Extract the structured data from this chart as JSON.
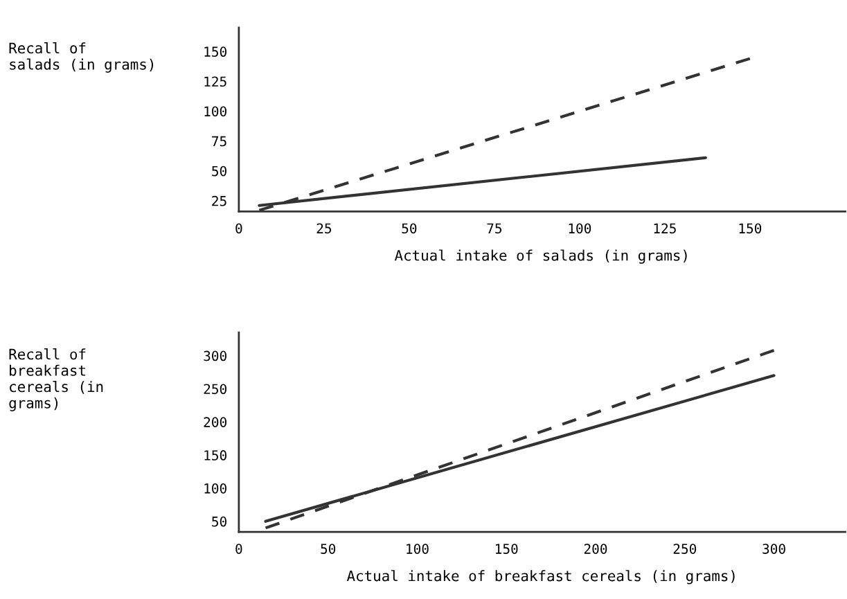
{
  "chart_data": [
    {
      "type": "line",
      "ylabel": "Recall of\nsalads (in grams)",
      "xlabel": "Actual intake of salads (in grams)",
      "xlim": [
        0,
        178
      ],
      "xticks": [
        0,
        25,
        50,
        75,
        100,
        125,
        150
      ],
      "ylim": [
        16,
        170
      ],
      "yticks": [
        25,
        50,
        75,
        100,
        125,
        150
      ],
      "grid": false,
      "legend": false,
      "series": [
        {
          "color": "#333333",
          "line_style": "dashed",
          "x": [
            6,
            150
          ],
          "values": [
            17,
            144
          ]
        },
        {
          "color": "#333333",
          "line_style": "solid",
          "x": [
            6,
            137
          ],
          "values": [
            21,
            61
          ]
        }
      ]
    },
    {
      "type": "line",
      "ylabel": "Recall of\nbreakfast\ncereals (in\ngrams)",
      "xlabel": "Actual intake of breakfast cereals (in grams)",
      "xlim": [
        0,
        340
      ],
      "xticks": [
        0,
        50,
        100,
        150,
        200,
        250,
        300
      ],
      "ylim": [
        34,
        335
      ],
      "yticks": [
        50,
        100,
        150,
        200,
        250,
        300
      ],
      "grid": false,
      "legend": false,
      "series": [
        {
          "color": "#333333",
          "line_style": "dashed",
          "x": [
            15,
            300
          ],
          "values": [
            40,
            308
          ]
        },
        {
          "color": "#333333",
          "line_style": "solid",
          "x": [
            15,
            300
          ],
          "values": [
            50,
            270
          ]
        }
      ]
    }
  ]
}
